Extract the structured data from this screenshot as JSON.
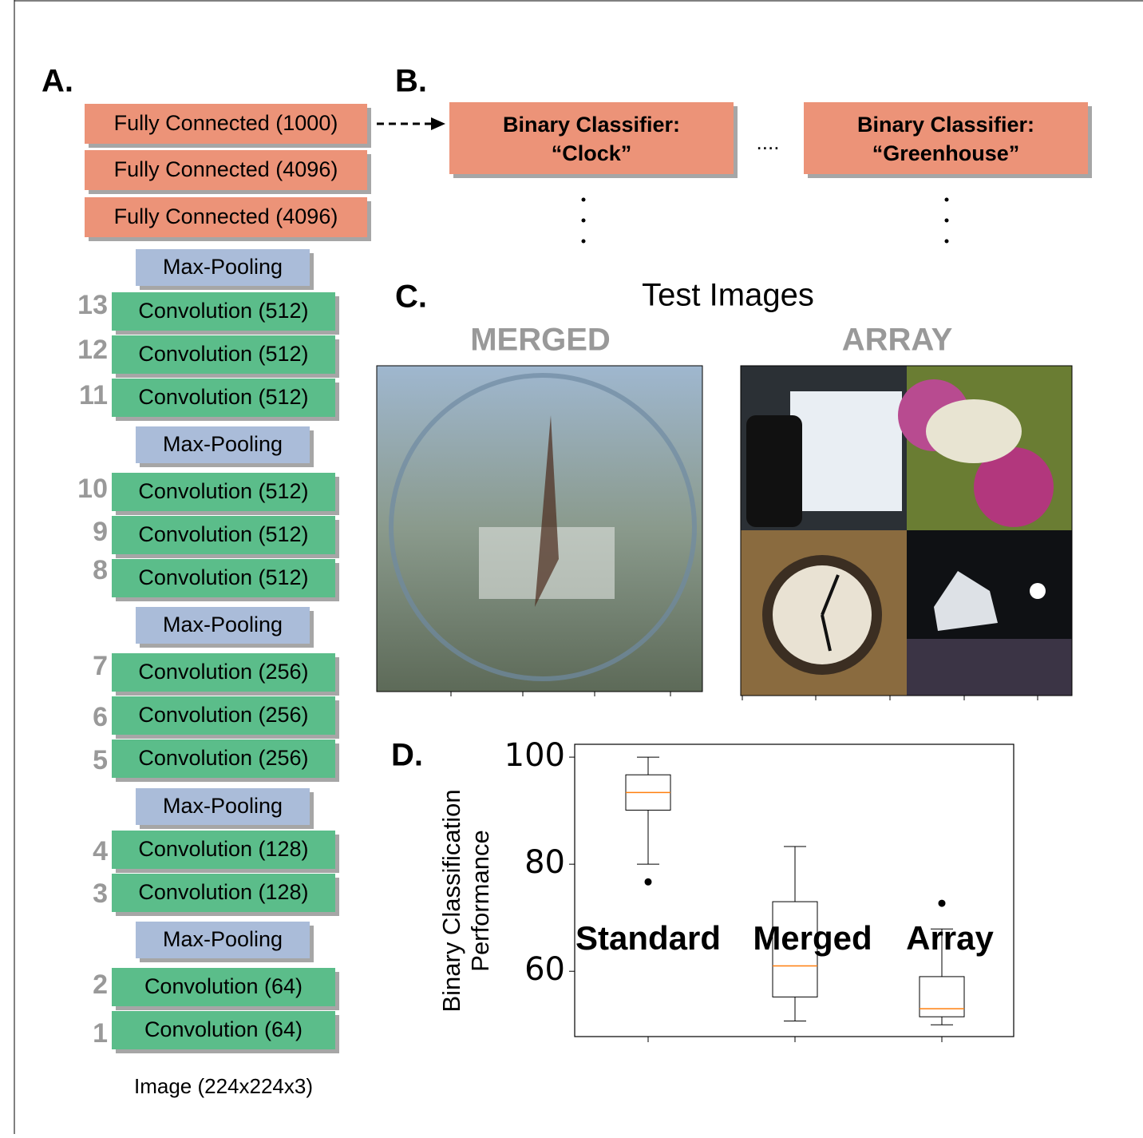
{
  "panels": {
    "a": "A.",
    "b": "B.",
    "c": "C.",
    "d": "D."
  },
  "network": {
    "fully_connected": [
      "Fully Connected (1000)",
      "Fully Connected (4096)",
      "Fully Connected (4096)"
    ],
    "layers": [
      {
        "type": "pool",
        "label": "Max-Pooling"
      },
      {
        "type": "conv",
        "number": 13,
        "label": "Convolution (512)"
      },
      {
        "type": "conv",
        "number": 12,
        "label": "Convolution (512)"
      },
      {
        "type": "conv",
        "number": 11,
        "label": "Convolution (512)"
      },
      {
        "type": "pool",
        "label": "Max-Pooling"
      },
      {
        "type": "conv",
        "number": 10,
        "label": "Convolution (512)"
      },
      {
        "type": "conv",
        "number": 9,
        "label": "Convolution (512)"
      },
      {
        "type": "conv",
        "number": 8,
        "label": "Convolution (512)"
      },
      {
        "type": "pool",
        "label": "Max-Pooling"
      },
      {
        "type": "conv",
        "number": 7,
        "label": "Convolution (256)"
      },
      {
        "type": "conv",
        "number": 6,
        "label": "Convolution (256)"
      },
      {
        "type": "conv",
        "number": 5,
        "label": "Convolution (256)"
      },
      {
        "type": "pool",
        "label": "Max-Pooling"
      },
      {
        "type": "conv",
        "number": 4,
        "label": "Convolution (128)"
      },
      {
        "type": "conv",
        "number": 3,
        "label": "Convolution (128)"
      },
      {
        "type": "pool",
        "label": "Max-Pooling"
      },
      {
        "type": "conv",
        "number": 2,
        "label": "Convolution (64)"
      },
      {
        "type": "conv",
        "number": 1,
        "label": "Convolution (64)"
      }
    ],
    "input": "Image (224x224x3)"
  },
  "classifiers": {
    "items": [
      [
        "Binary Classifier:",
        "“Clock”"
      ],
      [
        "Binary Classifier:",
        "“Greenhouse”"
      ]
    ],
    "ellipsis": "...."
  },
  "test_images": {
    "title": "Test Images",
    "merged": "MERGED",
    "array": "ARRAY"
  },
  "chart_data": {
    "type": "box",
    "ylabel": [
      "Binary Classification",
      "Performance"
    ],
    "categories": [
      "Standard",
      "Merged",
      "Array"
    ],
    "boxes": [
      {
        "whislo": 80,
        "q1": 90.1,
        "med": 93.4,
        "q3": 96.7,
        "whishi": 100,
        "fliers": [
          76.7
        ]
      },
      {
        "whislo": 50.7,
        "q1": 55.2,
        "med": 61,
        "q3": 73,
        "whishi": 83.3,
        "fliers": []
      },
      {
        "whislo": 50,
        "q1": 51.5,
        "med": 53,
        "q3": 59,
        "whishi": 67.9,
        "fliers": [
          72.7
        ]
      }
    ],
    "median_color": "#ff7f0e",
    "ylim": [
      47.8,
      102.4
    ],
    "yticks": [
      60,
      80,
      100
    ]
  }
}
